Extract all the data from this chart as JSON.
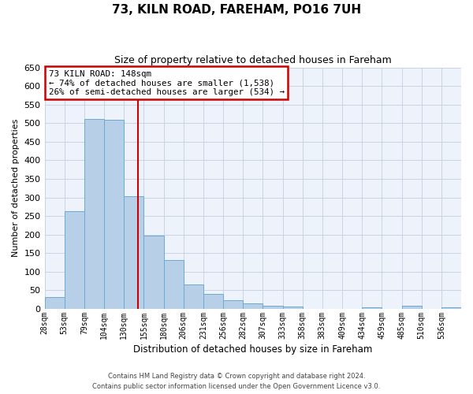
{
  "title": "73, KILN ROAD, FAREHAM, PO16 7UH",
  "subtitle": "Size of property relative to detached houses in Fareham",
  "xlabel": "Distribution of detached houses by size in Fareham",
  "ylabel": "Number of detached properties",
  "bin_labels": [
    "28sqm",
    "53sqm",
    "79sqm",
    "104sqm",
    "130sqm",
    "155sqm",
    "180sqm",
    "206sqm",
    "231sqm",
    "256sqm",
    "282sqm",
    "307sqm",
    "333sqm",
    "358sqm",
    "383sqm",
    "409sqm",
    "434sqm",
    "459sqm",
    "485sqm",
    "510sqm",
    "536sqm"
  ],
  "n_bins": 21,
  "bar_heights": [
    32,
    263,
    512,
    510,
    303,
    197,
    131,
    66,
    40,
    23,
    15,
    8,
    6,
    0,
    0,
    0,
    5,
    0,
    8,
    0,
    5
  ],
  "bar_color": "#b8cfe8",
  "bar_edge_color": "#6aaad4",
  "vline_bin": 4.9,
  "vline_color": "#cc0000",
  "annotation_title": "73 KILN ROAD: 148sqm",
  "annotation_line1": "← 74% of detached houses are smaller (1,538)",
  "annotation_line2": "26% of semi-detached houses are larger (534) →",
  "annotation_box_color": "#cc0000",
  "ylim": [
    0,
    650
  ],
  "yticks": [
    0,
    50,
    100,
    150,
    200,
    250,
    300,
    350,
    400,
    450,
    500,
    550,
    600,
    650
  ],
  "footer_line1": "Contains HM Land Registry data © Crown copyright and database right 2024.",
  "footer_line2": "Contains public sector information licensed under the Open Government Licence v3.0.",
  "bg_color": "#eef2fa",
  "grid_color": "#c5cfe0"
}
